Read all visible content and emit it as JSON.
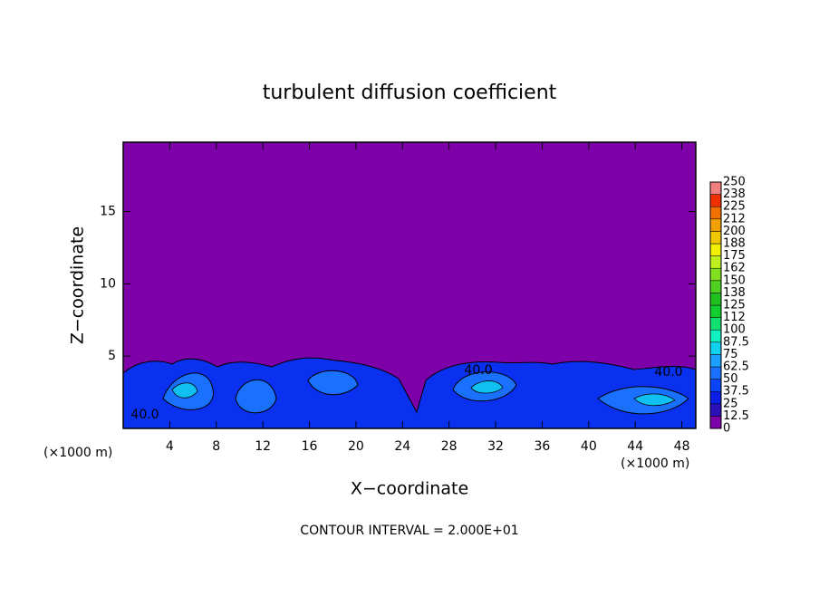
{
  "chart_data": {
    "type": "contour",
    "title": "turbulent diffusion coefficient",
    "x_label": "X−coordinate",
    "y_label": "Z−coordinate",
    "x_unit": "(×1000 m)",
    "footer": "CONTOUR INTERVAL = 2.000E+01",
    "contour_labels": [
      "40.0",
      "40.0",
      "40.0"
    ],
    "xlim": [
      0,
      49.2
    ],
    "xticks": [
      4,
      8,
      12,
      16,
      20,
      24,
      28,
      32,
      36,
      40,
      44,
      48
    ],
    "ylim": [
      0,
      19.8
    ],
    "yticks": [
      5,
      10,
      15
    ],
    "colorbar": {
      "levels": [
        0,
        12.5,
        25,
        37.5,
        50,
        62.5,
        75,
        87.5,
        100,
        {
          "value": 112.5,
          "label": "112"
        },
        125,
        {
          "value": 137.5,
          "label": "138"
        },
        150,
        {
          "value": 162.5,
          "label": "162"
        },
        175,
        {
          "value": 187.5,
          "label": "188"
        },
        200,
        {
          "value": 212.5,
          "label": "212"
        },
        225,
        {
          "value": 237.5,
          "label": "238"
        },
        250
      ],
      "colors": [
        "#7d00a8",
        "#2a10b8",
        "#0a1ee8",
        "#0a44ff",
        "#1a70ff",
        "#1aa0ff",
        "#10d0f0",
        "#10f0c0",
        "#10e070",
        "#10d030",
        "#20c020",
        "#50d020",
        "#80e020",
        "#c0f020",
        "#f0f000",
        "#f0c800",
        "#f0a000",
        "#f07000",
        "#f03000",
        "#f08080"
      ]
    }
  }
}
